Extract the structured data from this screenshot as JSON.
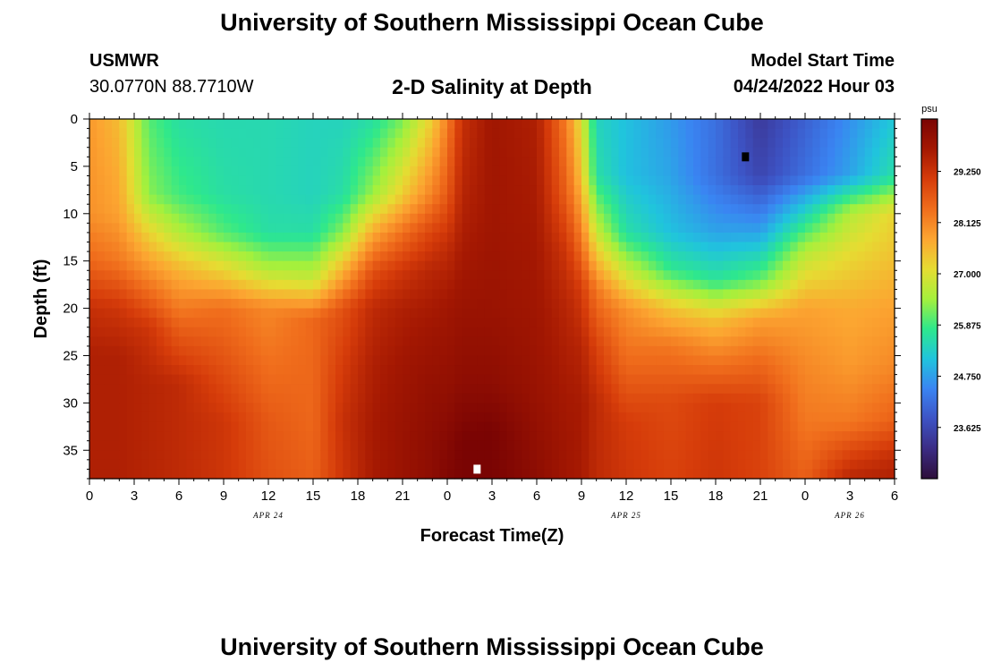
{
  "page": {
    "title_top": "University of Southern Mississippi Ocean Cube",
    "title_bottom": "University of Southern Mississippi Ocean Cube",
    "station": "USMWR",
    "coordinates": "30.0770N  88.7710W",
    "model_start_label": "Model Start Time",
    "model_start_value": "04/24/2022 Hour 03"
  },
  "chart_data": {
    "type": "heatmap",
    "title": "2-D Salinity at Depth",
    "xlabel": "Forecast Time(Z)",
    "ylabel": "Depth (ft)",
    "x_hours_range": [
      0,
      54
    ],
    "x_tick_hours": [
      0,
      3,
      6,
      9,
      12,
      15,
      18,
      21,
      24,
      27,
      30,
      33,
      36,
      39,
      42,
      45,
      48,
      51,
      54
    ],
    "x_tick_labels": [
      "0",
      "3",
      "6",
      "9",
      "12",
      "15",
      "18",
      "21",
      "0",
      "3",
      "6",
      "9",
      "12",
      "15",
      "18",
      "21",
      "0",
      "3",
      "6"
    ],
    "date_labels": [
      {
        "text": "APR 24",
        "hour": 12
      },
      {
        "text": "APR 25",
        "hour": 36
      },
      {
        "text": "APR 26",
        "hour": 51
      }
    ],
    "y_ticks": [
      0,
      5,
      10,
      15,
      20,
      25,
      30,
      35
    ],
    "ylim": [
      0,
      38
    ],
    "y_inverted": true,
    "colorbar": {
      "unit": "psu",
      "range": [
        22.5,
        30.4
      ],
      "ticks": [
        23.625,
        24.75,
        25.875,
        27.0,
        28.125,
        29.25
      ],
      "tick_labels": [
        "23.625",
        "24.750",
        "25.875",
        "27.000",
        "28.125",
        "29.250"
      ],
      "colors": [
        "#2e0f3a",
        "#3b2c84",
        "#3d53c4",
        "#3a84f2",
        "#20c4dd",
        "#2ee88c",
        "#a5f03c",
        "#e6dc32",
        "#fca531",
        "#f06d1c",
        "#d63c0a",
        "#a41802",
        "#7a0403"
      ]
    },
    "markers": [
      {
        "hour": 26,
        "depth": 37,
        "color": "#ffffff"
      },
      {
        "hour": 44,
        "depth": 4,
        "color": "#000000"
      }
    ],
    "field": [
      {
        "hour": 0,
        "profile": [
          [
            0,
            27.9
          ],
          [
            10,
            28.0
          ],
          [
            15,
            28.5
          ],
          [
            20,
            29.3
          ],
          [
            25,
            29.6
          ],
          [
            30,
            29.6
          ],
          [
            38,
            29.6
          ]
        ]
      },
      {
        "hour": 2,
        "profile": [
          [
            0,
            27.5
          ],
          [
            10,
            27.8
          ],
          [
            15,
            28.3
          ],
          [
            20,
            29.2
          ],
          [
            25,
            29.6
          ],
          [
            30,
            29.6
          ],
          [
            38,
            29.6
          ]
        ]
      },
      {
        "hour": 4,
        "profile": [
          [
            0,
            26.0
          ],
          [
            8,
            26.3
          ],
          [
            12,
            27.2
          ],
          [
            17,
            28.2
          ],
          [
            22,
            29.2
          ],
          [
            28,
            29.5
          ],
          [
            38,
            29.5
          ]
        ]
      },
      {
        "hour": 6,
        "profile": [
          [
            0,
            25.6
          ],
          [
            8,
            25.9
          ],
          [
            12,
            26.6
          ],
          [
            16,
            27.6
          ],
          [
            22,
            28.6
          ],
          [
            28,
            29.4
          ],
          [
            38,
            29.4
          ]
        ]
      },
      {
        "hour": 9,
        "profile": [
          [
            0,
            25.5
          ],
          [
            8,
            25.6
          ],
          [
            12,
            26.0
          ],
          [
            16,
            27.2
          ],
          [
            20,
            28.4
          ],
          [
            26,
            28.8
          ],
          [
            32,
            29.2
          ],
          [
            38,
            29.2
          ]
        ]
      },
      {
        "hour": 12,
        "profile": [
          [
            0,
            25.5
          ],
          [
            8,
            25.5
          ],
          [
            12,
            25.6
          ],
          [
            16,
            26.6
          ],
          [
            20,
            28.1
          ],
          [
            26,
            28.4
          ],
          [
            32,
            28.7
          ],
          [
            38,
            28.8
          ]
        ]
      },
      {
        "hour": 15,
        "profile": [
          [
            0,
            25.4
          ],
          [
            8,
            25.4
          ],
          [
            12,
            25.6
          ],
          [
            17,
            26.8
          ],
          [
            21,
            28.5
          ],
          [
            26,
            28.5
          ],
          [
            32,
            28.5
          ],
          [
            38,
            28.6
          ]
        ]
      },
      {
        "hour": 17,
        "profile": [
          [
            0,
            25.4
          ],
          [
            8,
            25.6
          ],
          [
            12,
            26.3
          ],
          [
            16,
            27.6
          ],
          [
            20,
            28.8
          ],
          [
            26,
            29.1
          ],
          [
            32,
            29.3
          ],
          [
            38,
            29.2
          ]
        ]
      },
      {
        "hour": 19,
        "profile": [
          [
            0,
            25.6
          ],
          [
            8,
            26.4
          ],
          [
            12,
            27.7
          ],
          [
            16,
            28.8
          ],
          [
            20,
            29.4
          ],
          [
            26,
            29.6
          ],
          [
            32,
            29.7
          ],
          [
            38,
            29.7
          ]
        ]
      },
      {
        "hour": 21,
        "profile": [
          [
            0,
            26.2
          ],
          [
            8,
            27.3
          ],
          [
            12,
            28.4
          ],
          [
            16,
            29.2
          ],
          [
            20,
            29.6
          ],
          [
            26,
            29.8
          ],
          [
            32,
            29.9
          ],
          [
            38,
            29.9
          ]
        ]
      },
      {
        "hour": 23,
        "profile": [
          [
            0,
            27.3
          ],
          [
            8,
            28.2
          ],
          [
            12,
            29.0
          ],
          [
            16,
            29.5
          ],
          [
            22,
            29.8
          ],
          [
            28,
            30.0
          ],
          [
            34,
            30.1
          ],
          [
            38,
            30.1
          ]
        ]
      },
      {
        "hour": 24,
        "profile": [
          [
            0,
            28.2
          ],
          [
            8,
            28.7
          ],
          [
            14,
            29.4
          ],
          [
            20,
            29.8
          ],
          [
            28,
            30.0
          ],
          [
            34,
            30.2
          ],
          [
            38,
            30.3
          ]
        ]
      },
      {
        "hour": 25,
        "profile": [
          [
            0,
            29.3
          ],
          [
            8,
            29.5
          ],
          [
            14,
            29.7
          ],
          [
            20,
            29.9
          ],
          [
            28,
            30.1
          ],
          [
            34,
            30.4
          ],
          [
            38,
            30.4
          ]
        ]
      },
      {
        "hour": 27,
        "profile": [
          [
            0,
            29.8
          ],
          [
            10,
            29.8
          ],
          [
            20,
            29.9
          ],
          [
            28,
            30.1
          ],
          [
            33,
            30.4
          ],
          [
            38,
            30.4
          ]
        ]
      },
      {
        "hour": 30,
        "profile": [
          [
            0,
            29.6
          ],
          [
            10,
            29.7
          ],
          [
            20,
            29.8
          ],
          [
            28,
            29.9
          ],
          [
            33,
            30.0
          ],
          [
            38,
            30.1
          ]
        ]
      },
      {
        "hour": 32,
        "profile": [
          [
            0,
            28.2
          ],
          [
            8,
            28.6
          ],
          [
            14,
            29.2
          ],
          [
            20,
            29.5
          ],
          [
            28,
            29.7
          ],
          [
            34,
            29.8
          ],
          [
            38,
            29.8
          ]
        ]
      },
      {
        "hour": 33,
        "profile": [
          [
            0,
            27.0
          ],
          [
            6,
            27.4
          ],
          [
            12,
            28.2
          ],
          [
            18,
            29.1
          ],
          [
            24,
            29.5
          ],
          [
            30,
            29.7
          ],
          [
            38,
            29.7
          ]
        ]
      },
      {
        "hour": 34,
        "profile": [
          [
            0,
            25.4
          ],
          [
            6,
            25.6
          ],
          [
            12,
            26.8
          ],
          [
            18,
            28.3
          ],
          [
            24,
            29.0
          ],
          [
            30,
            29.4
          ],
          [
            38,
            29.4
          ]
        ]
      },
      {
        "hour": 36,
        "profile": [
          [
            0,
            25.1
          ],
          [
            6,
            25.1
          ],
          [
            12,
            25.6
          ],
          [
            16,
            26.8
          ],
          [
            20,
            28.0
          ],
          [
            26,
            28.5
          ],
          [
            32,
            29.1
          ],
          [
            38,
            29.2
          ]
        ]
      },
      {
        "hour": 39,
        "profile": [
          [
            0,
            24.7
          ],
          [
            6,
            24.8
          ],
          [
            12,
            25.1
          ],
          [
            16,
            25.8
          ],
          [
            20,
            27.4
          ],
          [
            24,
            28.3
          ],
          [
            30,
            28.9
          ],
          [
            38,
            29.0
          ]
        ]
      },
      {
        "hour": 42,
        "profile": [
          [
            0,
            24.2
          ],
          [
            6,
            24.2
          ],
          [
            12,
            24.8
          ],
          [
            17,
            25.7
          ],
          [
            21,
            27.4
          ],
          [
            25,
            28.2
          ],
          [
            30,
            29.1
          ],
          [
            38,
            29.2
          ]
        ]
      },
      {
        "hour": 45,
        "profile": [
          [
            0,
            23.4
          ],
          [
            6,
            23.6
          ],
          [
            12,
            24.8
          ],
          [
            17,
            26.1
          ],
          [
            21,
            27.8
          ],
          [
            25,
            28.4
          ],
          [
            30,
            29.0
          ],
          [
            38,
            29.0
          ]
        ]
      },
      {
        "hour": 48,
        "profile": [
          [
            0,
            24.0
          ],
          [
            6,
            24.2
          ],
          [
            10,
            25.4
          ],
          [
            14,
            26.6
          ],
          [
            20,
            27.8
          ],
          [
            26,
            28.1
          ],
          [
            32,
            28.3
          ],
          [
            38,
            28.6
          ]
        ]
      },
      {
        "hour": 51,
        "profile": [
          [
            0,
            24.6
          ],
          [
            6,
            24.8
          ],
          [
            10,
            26.6
          ],
          [
            14,
            27.1
          ],
          [
            20,
            27.7
          ],
          [
            26,
            27.9
          ],
          [
            32,
            28.3
          ],
          [
            36,
            29.1
          ],
          [
            38,
            29.5
          ]
        ]
      },
      {
        "hour": 54,
        "profile": [
          [
            0,
            25.2
          ],
          [
            6,
            25.6
          ],
          [
            10,
            27.2
          ],
          [
            14,
            27.4
          ],
          [
            20,
            27.8
          ],
          [
            26,
            28.1
          ],
          [
            32,
            28.6
          ],
          [
            36,
            29.4
          ],
          [
            38,
            29.6
          ]
        ]
      }
    ]
  }
}
